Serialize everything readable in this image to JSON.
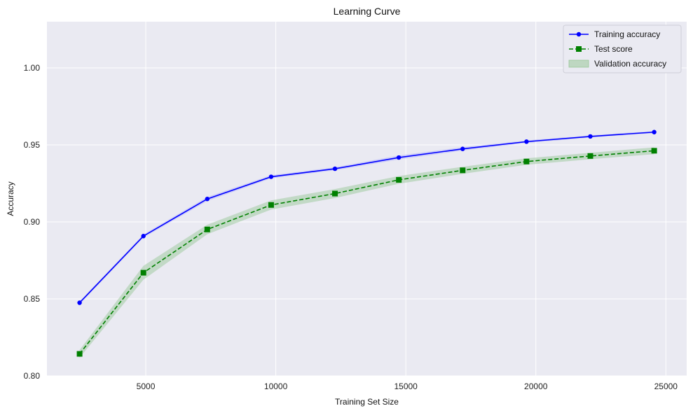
{
  "chart_data": {
    "type": "line",
    "title": "Learning Curve",
    "xlabel": "Training Set Size",
    "ylabel": "Accuracy",
    "xlim": [
      1200,
      25800
    ],
    "ylim": [
      0.8,
      1.03
    ],
    "xticks": [
      5000,
      10000,
      15000,
      20000,
      25000
    ],
    "yticks": [
      0.8,
      0.85,
      0.9,
      0.95,
      1.0
    ],
    "xtick_labels": [
      "5000",
      "10000",
      "15000",
      "20000",
      "25000"
    ],
    "ytick_labels": [
      "0.80",
      "0.85",
      "0.90",
      "0.95",
      "1.00"
    ],
    "grid": true,
    "legend_position": "top-right",
    "x": [
      2455,
      4910,
      7365,
      9820,
      12275,
      14730,
      17185,
      19640,
      22095,
      24550
    ],
    "series": [
      {
        "name": "Training accuracy",
        "style": "solid",
        "marker": "circle",
        "color": "#0000ff",
        "values": [
          0.8475,
          0.8908,
          0.9149,
          0.9293,
          0.9345,
          0.9418,
          0.9474,
          0.9521,
          0.9555,
          0.9583
        ],
        "band_lower": [
          0.8465,
          0.8898,
          0.9136,
          0.9283,
          0.9335,
          0.9405,
          0.9463,
          0.9513,
          0.9548,
          0.9576
        ],
        "band_upper": [
          0.8485,
          0.8918,
          0.9162,
          0.9303,
          0.9355,
          0.9431,
          0.9485,
          0.9529,
          0.9562,
          0.959
        ],
        "band_color": "#aaaaff"
      },
      {
        "name": "Test score",
        "style": "dashed",
        "marker": "square",
        "color": "#008000",
        "values": [
          0.8143,
          0.867,
          0.8951,
          0.911,
          0.9184,
          0.9273,
          0.9335,
          0.9392,
          0.9428,
          0.9462
        ],
        "band_lower": [
          0.8118,
          0.8625,
          0.892,
          0.908,
          0.9155,
          0.9248,
          0.9312,
          0.9371,
          0.9407,
          0.944
        ],
        "band_upper": [
          0.8168,
          0.8715,
          0.8982,
          0.914,
          0.9213,
          0.9298,
          0.9358,
          0.9413,
          0.9449,
          0.9484
        ],
        "band_color": "#99c799"
      }
    ],
    "legend": [
      {
        "label": "Training accuracy",
        "kind": "line-marker",
        "color": "#0000ff",
        "style": "solid",
        "marker": "circle"
      },
      {
        "label": "Test score",
        "kind": "line-marker",
        "color": "#008000",
        "style": "dashed",
        "marker": "square"
      },
      {
        "label": "Validation accuracy",
        "kind": "patch",
        "color": "#99c799"
      }
    ]
  },
  "theme": {
    "axes_background": "#eaeaf2",
    "grid_color": "#ffffff",
    "legend_background": "#eaeaf2",
    "legend_border": "#cfcfd8"
  }
}
